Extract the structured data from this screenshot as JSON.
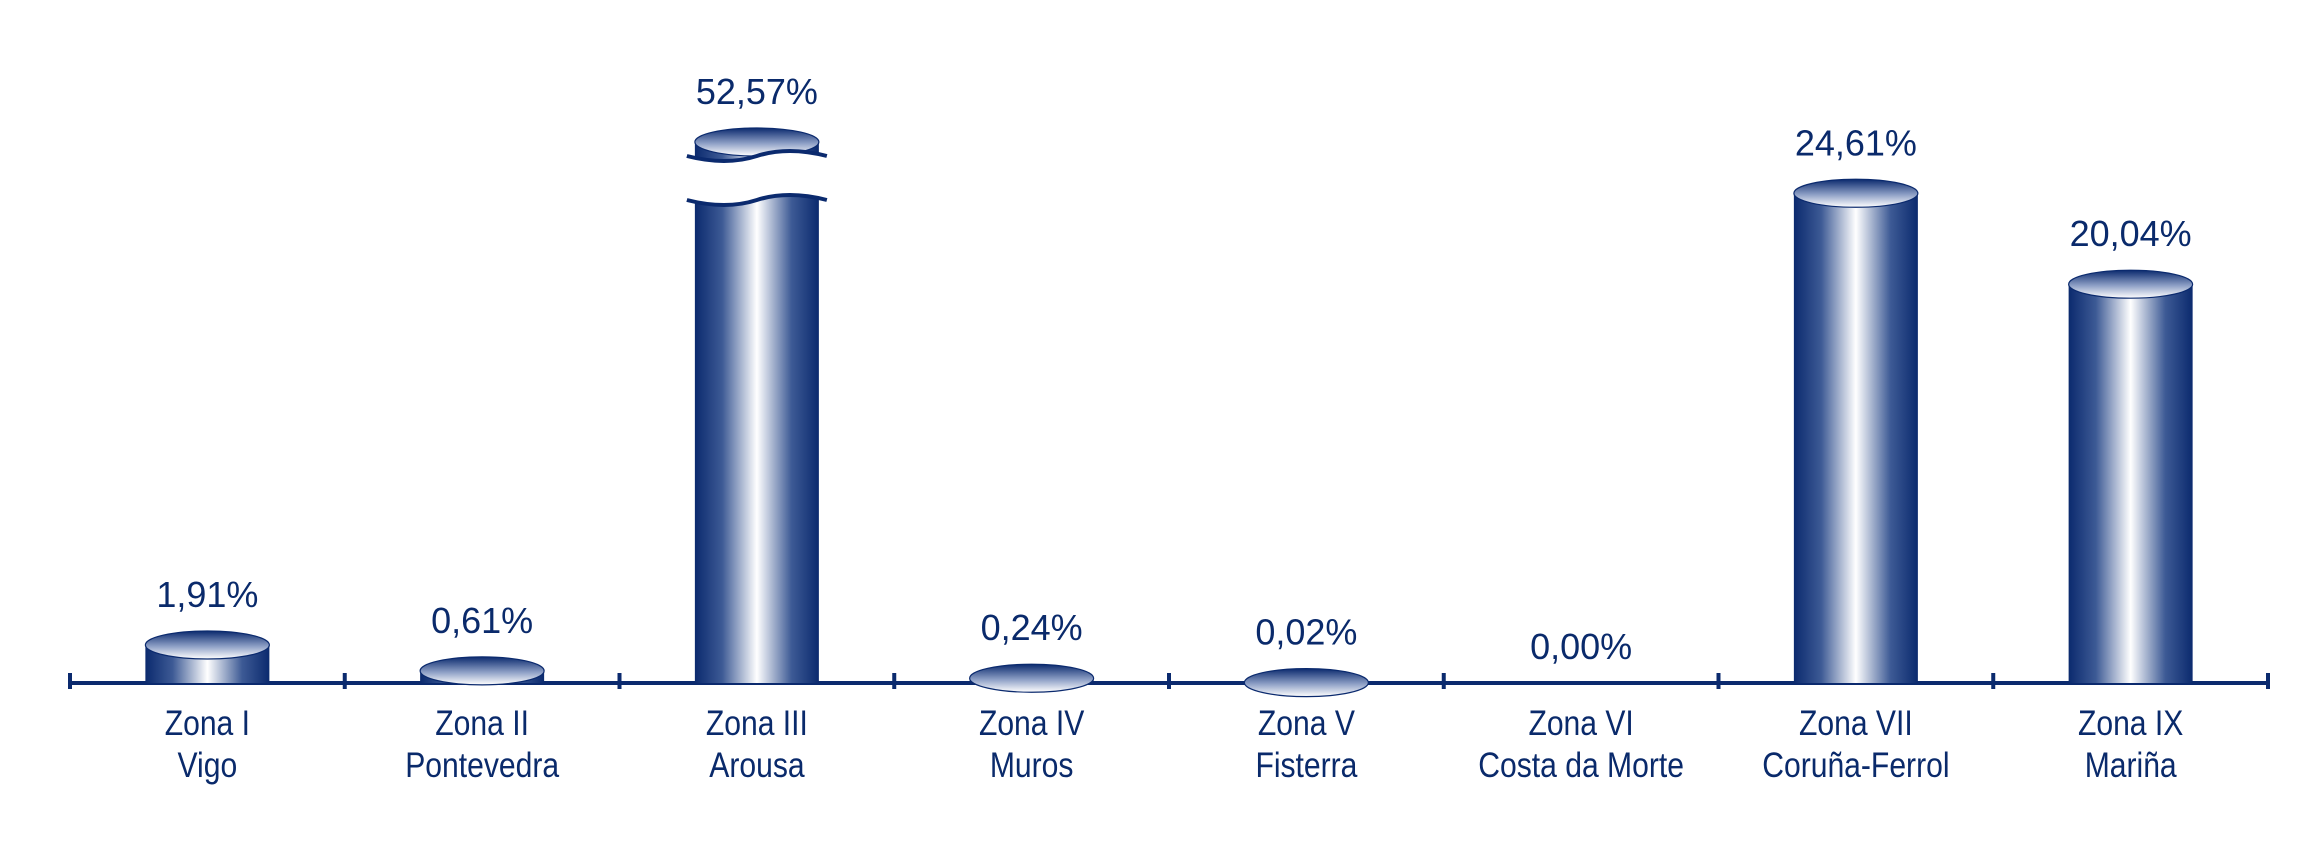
{
  "chart_data": {
    "type": "bar",
    "style": "cylinder",
    "title": "",
    "xlabel": "",
    "ylabel": "",
    "categories": [
      [
        "Zona I",
        "Vigo"
      ],
      [
        "Zona II",
        "Pontevedra"
      ],
      [
        "Zona III",
        "Arousa"
      ],
      [
        "Zona IV",
        "Muros"
      ],
      [
        "Zona V",
        "Fisterra"
      ],
      [
        "Zona VI",
        "Costa da Morte"
      ],
      [
        "Zona VII",
        "Coruña-Ferrol"
      ],
      [
        "Zona IX",
        "Mariña"
      ]
    ],
    "values": [
      1.91,
      0.61,
      52.57,
      0.24,
      0.02,
      0.0,
      24.61,
      20.04
    ],
    "value_labels": [
      "1,91%",
      "0,61%",
      "52,57%",
      "0,24%",
      "0,02%",
      "0,00%",
      "24,61%",
      "20,04%"
    ],
    "broken_bar_category": "Zona III",
    "grid": false,
    "legend": "none",
    "colors": {
      "bar_dark": "#0b2a6e",
      "bar_light": "#ffffff",
      "axis": "#0b2a6e",
      "text": "#0a2a6b"
    }
  }
}
